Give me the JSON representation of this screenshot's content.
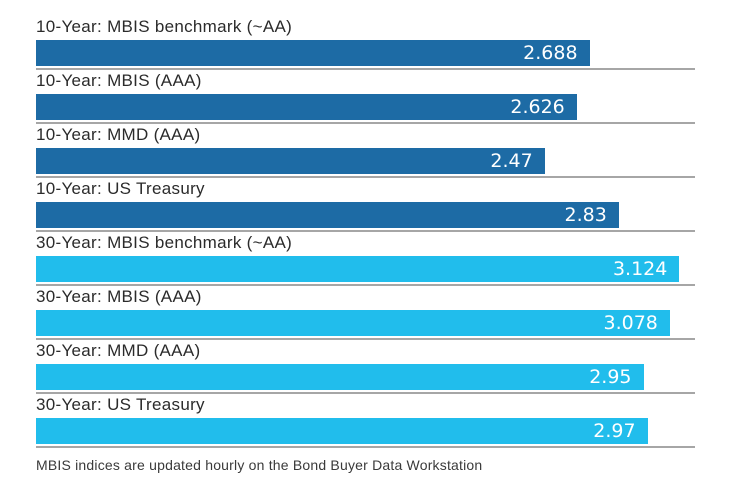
{
  "chart_data": {
    "type": "bar",
    "orientation": "horizontal",
    "title": "",
    "categories": [
      "10-Year: MBIS benchmark (~AA)",
      "10-Year: MBIS (AAA)",
      "10-Year: MMD (AAA)",
      "10-Year: US Treasury",
      "30-Year: MBIS benchmark (~AA)",
      "30-Year: MBIS (AAA)",
      "30-Year: MMD (AAA)",
      "30-Year: US Treasury"
    ],
    "values": [
      2.688,
      2.626,
      2.47,
      2.83,
      3.124,
      3.078,
      2.95,
      2.97
    ],
    "value_labels": [
      "2.688",
      "2.626",
      "2.47",
      "2.83",
      "3.124",
      "3.078",
      "2.95",
      "2.97"
    ],
    "groups": [
      "10-year",
      "10-year",
      "10-year",
      "10-year",
      "30-year",
      "30-year",
      "30-year",
      "30-year"
    ],
    "group_colors": {
      "10-year": "#1d6ba5",
      "30-year": "#21bdec"
    },
    "xlim": [
      0,
      3.2
    ],
    "grid": false,
    "legend": "none",
    "value_label_color": "#ffffff",
    "baseline_color": "#a6a6a6",
    "footnote": "MBIS indices are updated hourly on the Bond Buyer Data Workstation"
  }
}
